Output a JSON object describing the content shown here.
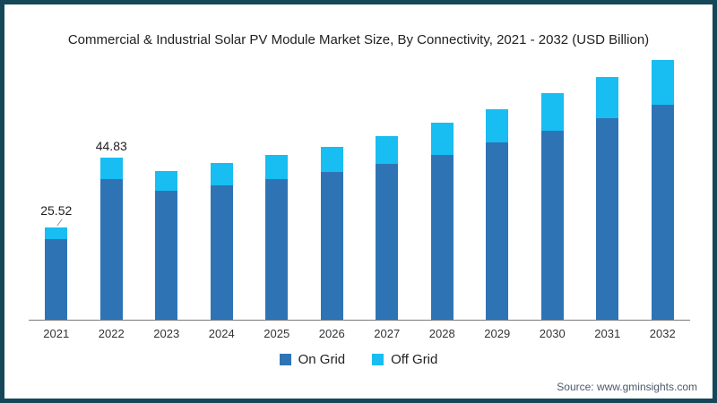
{
  "title": "Commercial & Industrial Solar PV Module Market Size, By Connectivity, 2021 - 2032 (USD Billion)",
  "source": "Source: www.gminsights.com",
  "legend": {
    "items": [
      {
        "label": "On Grid",
        "color": "#2e74b5"
      },
      {
        "label": "Off Grid",
        "color": "#18bdf2"
      }
    ]
  },
  "colors": {
    "frame_border": "#154759",
    "axis_line": "#7a7a7a",
    "on_grid": "#2e74b5",
    "off_grid": "#18bdf2"
  },
  "chart_data": {
    "type": "bar",
    "stacked": true,
    "title": "Commercial & Industrial Solar PV Module Market Size, By Connectivity, 2021 - 2032 (USD Billion)",
    "units": "USD Billion",
    "categories": [
      "2021",
      "2022",
      "2023",
      "2024",
      "2025",
      "2026",
      "2027",
      "2028",
      "2029",
      "2030",
      "2031",
      "2032"
    ],
    "series": [
      {
        "name": "On Grid",
        "color": "#2e74b5",
        "values": [
          22.32,
          38.93,
          35.7,
          37.2,
          38.9,
          40.9,
          43.1,
          45.6,
          49.0,
          52.3,
          55.7,
          59.5
        ]
      },
      {
        "name": "Off Grid",
        "color": "#18bdf2",
        "values": [
          3.2,
          5.9,
          5.5,
          6.2,
          6.7,
          6.9,
          7.7,
          8.9,
          9.2,
          10.4,
          11.4,
          12.4
        ]
      }
    ],
    "totals": [
      25.52,
      44.83,
      41.2,
      43.4,
      45.6,
      47.8,
      50.8,
      54.5,
      58.2,
      62.7,
      67.1,
      71.9
    ],
    "annotations": [
      {
        "category": "2021",
        "text": "25.52",
        "leader": true
      },
      {
        "category": "2022",
        "text": "44.83",
        "leader": false
      }
    ],
    "ylim": [
      0,
      73.6
    ],
    "grid": false,
    "legend_position": "bottom-center",
    "x_axis_line": true,
    "y_axis": "hidden"
  }
}
